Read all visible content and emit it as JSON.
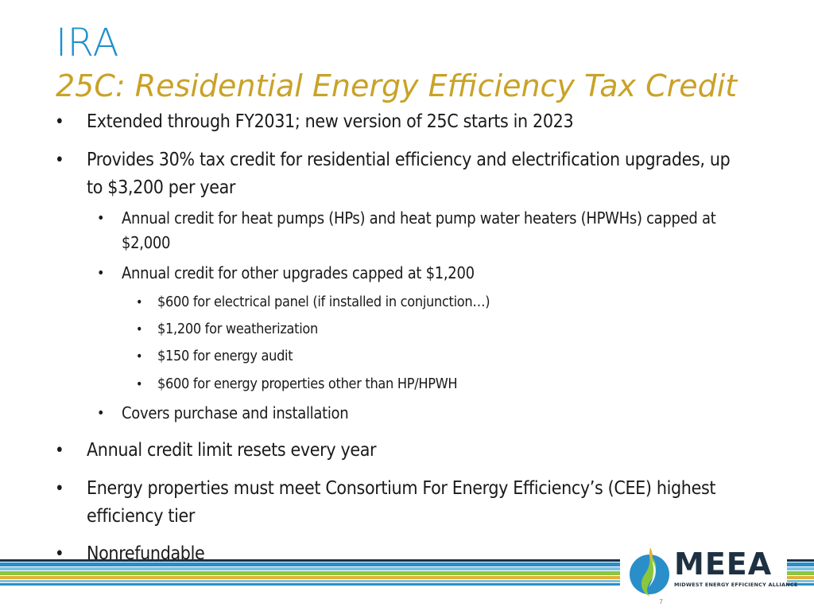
{
  "slide": {
    "title": "IRA",
    "subtitle": "25C: Residential Energy Efficiency Tax Credit",
    "bullet_char": "•",
    "bullets": [
      {
        "text": "Extended through FY2031; new version of 25C starts in 2023"
      },
      {
        "text": "Provides 30% tax credit for residential efficiency and electrification upgrades, up to $3,200 per year"
      },
      {
        "text": "Annual credit for heat pumps (HPs) and heat pump water heaters (HPWHs) capped at $2,000"
      },
      {
        "text": "Annual credit for other upgrades capped at $1,200"
      },
      {
        "text": "$600 for electrical panel (if installed in conjunction…)"
      },
      {
        "text": "$1,200 for weatherization"
      },
      {
        "text": "$150 for energy audit"
      },
      {
        "text": "$600 for energy properties other than HP/HPWH"
      },
      {
        "text": "Covers purchase and installation"
      },
      {
        "text": "Annual credit limit resets every year"
      },
      {
        "text": "Energy properties must meet Consortium For Energy Efficiency’s (CEE) highest efficiency tier"
      },
      {
        "text": "Nonrefundable"
      }
    ]
  },
  "logo": {
    "wordmark": "MEEA",
    "tagline": "MIDWEST ENERGY EFFICIENCY ALLIANCE",
    "icon": "swoosh-logo-icon"
  },
  "page_number": "7",
  "colors": {
    "title": "#1f8fce",
    "subtitle": "#c9a227",
    "text": "#1a1a1a",
    "logo_dark": "#1d3142",
    "stripe_navy": "#1d3142",
    "stripe_blue": "#2a8fc8",
    "stripe_sky": "#7fc1df",
    "stripe_green": "#8cc63f",
    "stripe_gold": "#e0b43a"
  }
}
